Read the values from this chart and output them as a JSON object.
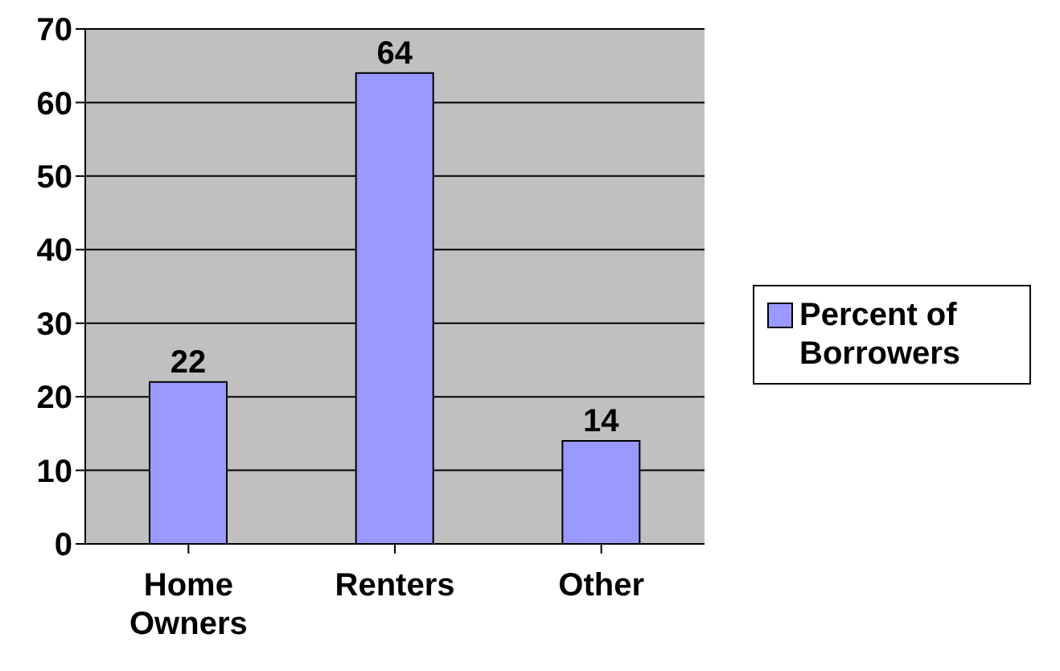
{
  "chart_data": {
    "type": "bar",
    "categories": [
      "Home Owners",
      "Renters",
      "Other"
    ],
    "series": [
      {
        "name": "Percent of Borrowers",
        "color": "#9999ff",
        "values": [
          22,
          64,
          14
        ]
      }
    ],
    "ylim": [
      0,
      70
    ],
    "yticks": [
      0,
      10,
      20,
      30,
      40,
      50,
      60,
      70
    ],
    "grid": "y",
    "legend": "right",
    "data_labels": true
  }
}
